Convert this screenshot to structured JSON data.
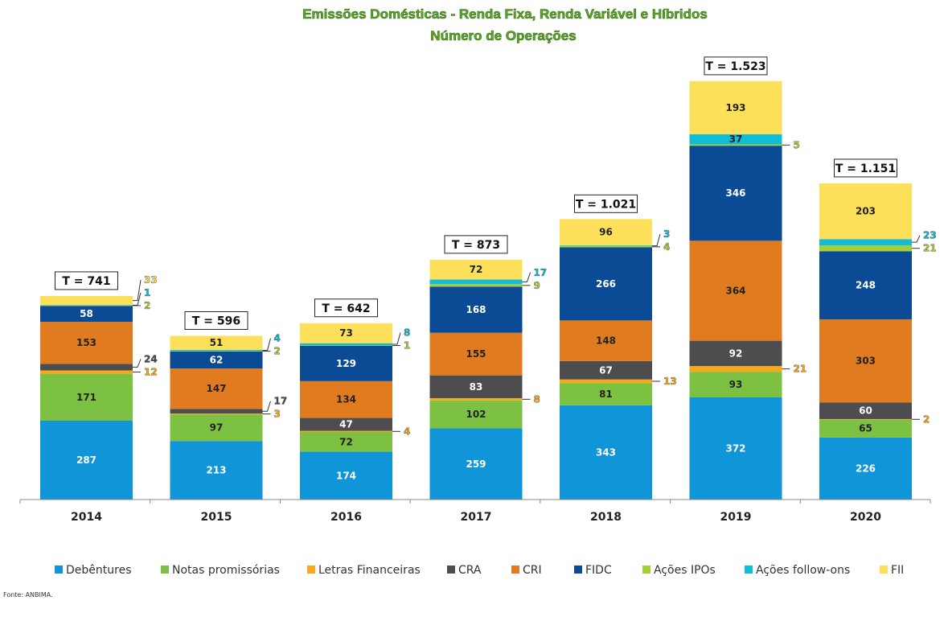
{
  "chart_data": {
    "type": "bar",
    "stacked": true,
    "title": "Emissões Domésticas - Renda Fixa, Renda Variável e Híbridos",
    "subtitle": "Número de Operações",
    "categories": [
      "2014",
      "2015",
      "2016",
      "2017",
      "2018",
      "2019",
      "2020"
    ],
    "totals": [
      "T = 741",
      "T = 596",
      "T = 642",
      "T = 873",
      "T = 1.021",
      "T = 1.523",
      "T = 1.151"
    ],
    "series": [
      {
        "name": "Debêntures",
        "color": "#0f95d8",
        "text_color": "#ffffff",
        "values": [
          287,
          213,
          174,
          259,
          343,
          372,
          226
        ]
      },
      {
        "name": "Notas promissórias",
        "color": "#7dc143",
        "text_color": "#222222",
        "values": [
          171,
          97,
          72,
          102,
          81,
          93,
          65
        ]
      },
      {
        "name": "Letras Financeiras",
        "color": "#f7a81b",
        "text_color": "#ffffff",
        "values": [
          12,
          3,
          4,
          8,
          13,
          21,
          2
        ]
      },
      {
        "name": "CRA",
        "color": "#4d4d4f",
        "text_color": "#ffffff",
        "values": [
          24,
          17,
          47,
          83,
          67,
          92,
          60
        ]
      },
      {
        "name": "CRI",
        "color": "#e07b1f",
        "text_color": "#222222",
        "values": [
          153,
          147,
          134,
          155,
          148,
          364,
          303
        ]
      },
      {
        "name": "FIDC",
        "color": "#0b4a94",
        "text_color": "#ffffff",
        "values": [
          58,
          62,
          129,
          168,
          266,
          346,
          248
        ]
      },
      {
        "name": "Ações IPOs",
        "color": "#a6ce39",
        "text_color": "#222222",
        "values": [
          2,
          2,
          1,
          9,
          4,
          5,
          21
        ]
      },
      {
        "name": "Ações follow-ons",
        "color": "#12bcd6",
        "text_color": "#222222",
        "values": [
          1,
          4,
          8,
          17,
          3,
          37,
          23
        ]
      },
      {
        "name": "FII",
        "color": "#fde05a",
        "text_color": "#222222",
        "values": [
          33,
          51,
          73,
          72,
          96,
          193,
          203
        ]
      }
    ],
    "ylim": [
      0,
      1600
    ],
    "grid": false,
    "legend_position": "bottom",
    "source": "Fonte: ANBIMA."
  }
}
